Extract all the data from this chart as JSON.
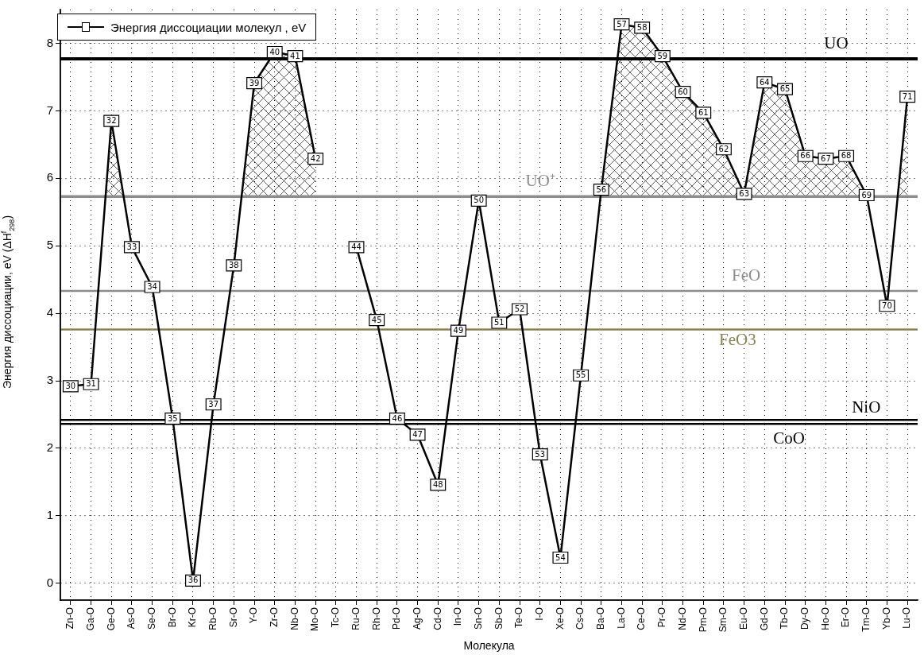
{
  "chart_data": {
    "type": "line",
    "xlabel": "Молекула",
    "ylabel": "Энергия диссоциации, eV (ΔH$^{f}$$_{298}$)",
    "categories": [
      "Zn-O",
      "Ga-O",
      "Ge-O",
      "As-O",
      "Se-O",
      "Br-O",
      "Kr-O",
      "Rb-O",
      "Sr-O",
      "Y-O",
      "Zr-O",
      "Nb-O",
      "Mo-O",
      "Tc-O",
      "Ru-O",
      "Rh-O",
      "Pd-O",
      "Ag-O",
      "Cd-O",
      "In-O",
      "Sn-O",
      "Sb-O",
      "Te-O",
      "I-O",
      "Xe-O",
      "Cs-O",
      "Ba-O",
      "La-O",
      "Ce-O",
      "Pr-O",
      "Nd-O",
      "Pm-O",
      "Sm-O",
      "Eu-O",
      "Gd-O",
      "Tb-O",
      "Dy-O",
      "Ho-O",
      "Er-O",
      "Tm-O",
      "Yb-O",
      "Lu-O"
    ],
    "series": [
      {
        "name": "Энергия диссоциации молекул , eV",
        "color": "#000000",
        "values": [
          2.92,
          2.95,
          6.85,
          4.98,
          4.39,
          2.44,
          0.04,
          2.65,
          4.71,
          7.41,
          7.87,
          7.81,
          6.29,
          null,
          4.98,
          3.9,
          2.44,
          2.2,
          1.46,
          3.74,
          5.67,
          3.86,
          4.06,
          1.91,
          0.38,
          3.08,
          5.83,
          8.28,
          8.23,
          7.81,
          7.28,
          6.97,
          6.43,
          5.77,
          7.42,
          7.32,
          6.33,
          6.29,
          6.33,
          5.75,
          4.11,
          7.21
        ]
      }
    ],
    "ylim": [
      -0.25,
      8.5
    ],
    "yticks": [
      0,
      1,
      2,
      3,
      4,
      5,
      6,
      7,
      8
    ],
    "grid": true,
    "legend": "top left",
    "marker": "square",
    "line_style": "solid",
    "ref_lines": [
      {
        "axis": "y",
        "value": 7.77,
        "label": "UO",
        "color": "#000000"
      },
      {
        "axis": "y",
        "value": 5.73,
        "label": "UO⁺",
        "color": "#8c8c8c"
      },
      {
        "axis": "y",
        "value": 4.33,
        "label": "FeO",
        "color": "#8c8c8c"
      },
      {
        "axis": "y",
        "value": 3.76,
        "label": "FeO3",
        "color": "#86844f"
      },
      {
        "axis": "y",
        "value": 2.42,
        "label": "NiO",
        "color": "#000000"
      },
      {
        "axis": "y",
        "value": 2.36,
        "label": "CoO",
        "color": "#000000"
      }
    ],
    "annotations": [
      {
        "text": "30",
        "x": "Zn-O",
        "y": 2.92
      },
      {
        "text": "31",
        "x": "Ga-O",
        "y": 2.95
      },
      {
        "text": "32",
        "x": "Ge-O",
        "y": 6.85
      },
      {
        "text": "33",
        "x": "As-O",
        "y": 4.98
      },
      {
        "text": "34",
        "x": "Se-O",
        "y": 4.39
      },
      {
        "text": "35",
        "x": "Br-O",
        "y": 2.44
      },
      {
        "text": "36",
        "x": "Kr-O",
        "y": 0.04
      },
      {
        "text": "37",
        "x": "Rb-O",
        "y": 2.65
      },
      {
        "text": "38",
        "x": "Sr-O",
        "y": 4.71
      },
      {
        "text": "39",
        "x": "Y-O",
        "y": 7.41
      },
      {
        "text": "40",
        "x": "Zr-O",
        "y": 7.87
      },
      {
        "text": "41",
        "x": "Nb-O",
        "y": 7.81
      },
      {
        "text": "42",
        "x": "Mo-O",
        "y": 6.29
      },
      {
        "text": "44",
        "x": "Ru-O",
        "y": 4.98
      },
      {
        "text": "45",
        "x": "Rh-O",
        "y": 3.9
      },
      {
        "text": "46",
        "x": "Pd-O",
        "y": 2.44
      },
      {
        "text": "47",
        "x": "Ag-O",
        "y": 2.2
      },
      {
        "text": "48",
        "x": "Cd-O",
        "y": 1.46
      },
      {
        "text": "49",
        "x": "In-O",
        "y": 3.74
      },
      {
        "text": "50",
        "x": "Sn-O",
        "y": 5.67
      },
      {
        "text": "51",
        "x": "Sb-O",
        "y": 3.86
      },
      {
        "text": "52",
        "x": "Te-O",
        "y": 4.06
      },
      {
        "text": "53",
        "x": "I-O",
        "y": 1.91
      },
      {
        "text": "54",
        "x": "Xe-O",
        "y": 0.38
      },
      {
        "text": "55",
        "x": "Cs-O",
        "y": 3.08
      },
      {
        "text": "56",
        "x": "Ba-O",
        "y": 5.83
      },
      {
        "text": "57",
        "x": "La-O",
        "y": 8.28
      },
      {
        "text": "58",
        "x": "Ce-O",
        "y": 8.23
      },
      {
        "text": "59",
        "x": "Pr-O",
        "y": 7.81
      },
      {
        "text": "60",
        "x": "Nd-O",
        "y": 7.28
      },
      {
        "text": "61",
        "x": "Pm-O",
        "y": 6.97
      },
      {
        "text": "62",
        "x": "Sm-O",
        "y": 6.43
      },
      {
        "text": "63",
        "x": "Eu-O",
        "y": 5.77
      },
      {
        "text": "64",
        "x": "Gd-O",
        "y": 7.42
      },
      {
        "text": "65",
        "x": "Tb-O",
        "y": 7.32
      },
      {
        "text": "66",
        "x": "Dy-O",
        "y": 6.33
      },
      {
        "text": "67",
        "x": "Ho-O",
        "y": 6.29
      },
      {
        "text": "68",
        "x": "Er-O",
        "y": 6.33
      },
      {
        "text": "69",
        "x": "Tm-O",
        "y": 5.75
      },
      {
        "text": "70",
        "x": "Yb-O",
        "y": 4.11
      },
      {
        "text": "71",
        "x": "Lu-O",
        "y": 7.21
      }
    ]
  }
}
